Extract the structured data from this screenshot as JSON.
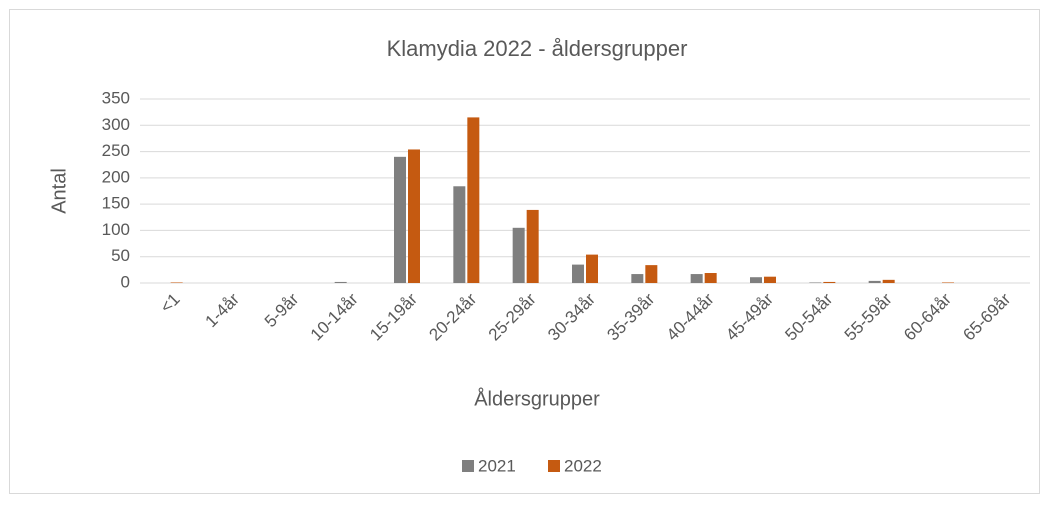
{
  "chart_data": {
    "type": "bar",
    "title": "Klamydia 2022 - åldersgrupper",
    "x_label": "Åldersgrupper",
    "y_label": "Antal",
    "categories": [
      "<1",
      "1-4år",
      "5-9år",
      "10-14år",
      "15-19år",
      "20-24år",
      "25-29år",
      "30-34år",
      "35-39år",
      "40-44år",
      "45-49år",
      "50-54år",
      "55-59år",
      "60-64år",
      "65-69år"
    ],
    "series": [
      {
        "name": "2021",
        "color": "#7f7f7f",
        "values": [
          0,
          0,
          0,
          2,
          240,
          184,
          105,
          35,
          17,
          17,
          11,
          1,
          4,
          0,
          0
        ]
      },
      {
        "name": "2022",
        "color": "#c55a11",
        "values": [
          1,
          0,
          0,
          0,
          254,
          315,
          139,
          54,
          34,
          19,
          12,
          2,
          6,
          1,
          0
        ]
      }
    ],
    "ylim": [
      0,
      350
    ],
    "yticks": [
      0,
      50,
      100,
      150,
      200,
      250,
      300,
      350
    ],
    "grid": true,
    "legend": "bottom"
  }
}
